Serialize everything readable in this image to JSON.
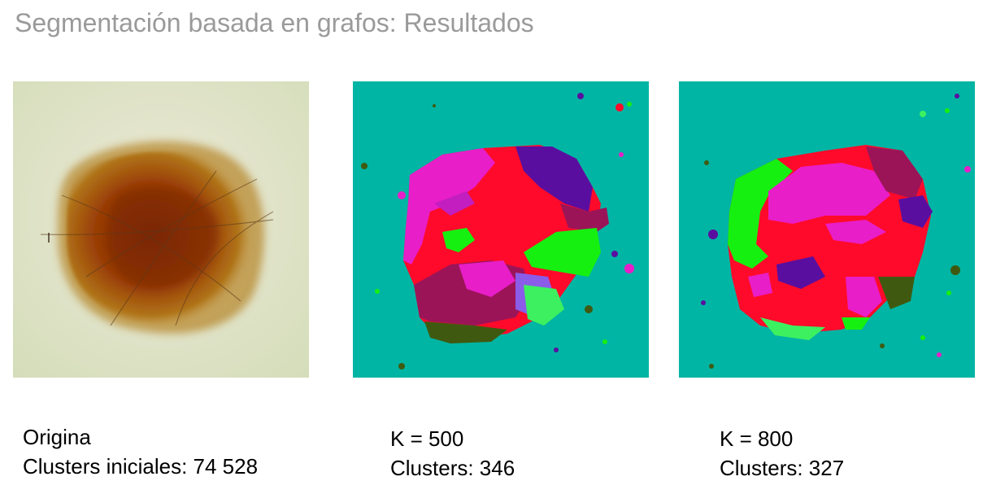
{
  "title": "Segmentación basada en grafos: Resultados",
  "panels": [
    {
      "line1": "Origina",
      "line2": "Clusters iniciales: 74 528"
    },
    {
      "line1": "K = 500",
      "line2": "Clusters: 346"
    },
    {
      "line1": "K = 800",
      "line2": "Clusters: 327"
    }
  ],
  "colors": {
    "background_teal": "#00b5a4",
    "segment_red": "#ff0a2a",
    "segment_magenta": "#e81ec8",
    "segment_green": "#16f010",
    "segment_purple": "#5a0ea0",
    "segment_crimson": "#9c1458",
    "segment_olive": "#3f5a10"
  }
}
